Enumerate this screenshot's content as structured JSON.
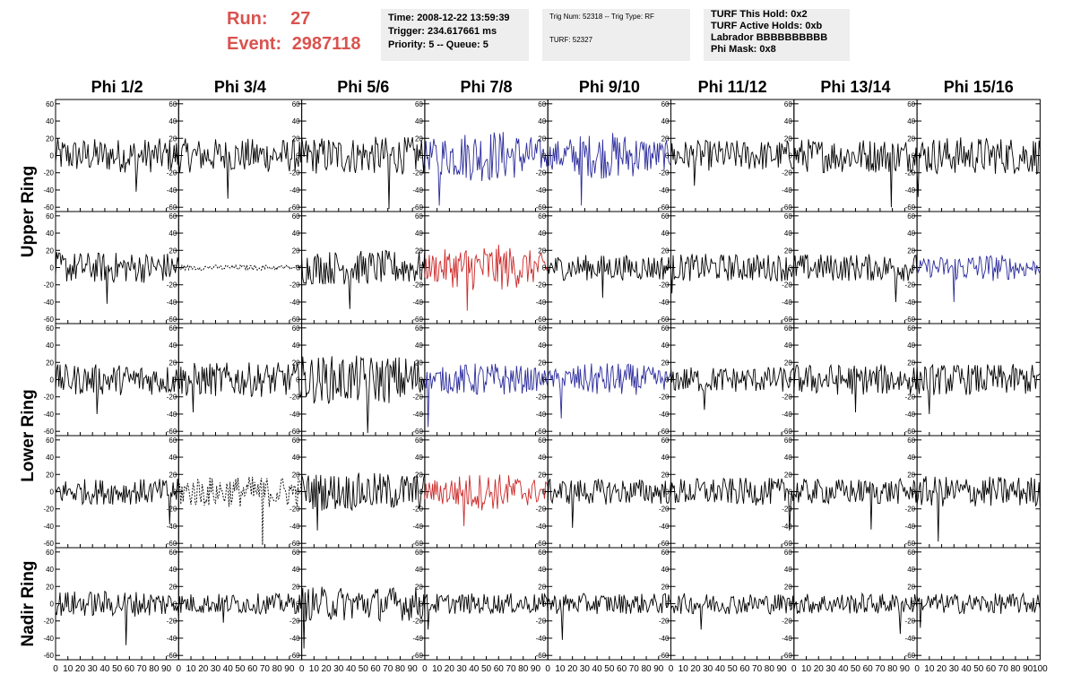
{
  "header": {
    "run_label": "Run:",
    "run_value": "27",
    "event_label": "Event:",
    "event_value": "2987118",
    "time": "Time: 2008-12-22 13:59:39",
    "trigger": "Trigger: 234.617661 ms",
    "priority": "Priority: 5 -- Queue: 5",
    "trig_num": "Trig Num: 52318 -- Trig Type: RF",
    "turf": "TURF: 52327",
    "turf_hold": "TURF This Hold: 0x2",
    "turf_active": "TURF Active Holds: 0xb",
    "labrador": "Labrador BBBBBBBBBB",
    "phi_mask": "Phi Mask: 0x8"
  },
  "colors": {
    "header_red": "#d9534f",
    "trace_black": "#000000",
    "trace_blue": "#2b2b9c",
    "trace_red": "#cc2a2a"
  },
  "chart_data": {
    "type": "line",
    "columns": [
      "Phi 1/2",
      "Phi 3/4",
      "Phi 5/6",
      "Phi 7/8",
      "Phi 9/10",
      "Phi 11/12",
      "Phi 13/14",
      "Phi 15/16"
    ],
    "row_labels": [
      "Upper Ring",
      "Lower Ring",
      "Nadir Ring"
    ],
    "xlim": [
      0,
      100
    ],
    "ylim": [
      -65,
      65
    ],
    "x_ticks": [
      "0",
      "10",
      "20",
      "30",
      "40",
      "50",
      "60",
      "70",
      "80",
      "90",
      "100"
    ],
    "y_ticks": [
      "60",
      "40",
      "20",
      "0",
      "-20",
      "-40",
      "-60"
    ],
    "nadir_y_ticks": [
      "60",
      "40",
      "20",
      "0",
      "-20",
      "-40",
      "-60"
    ],
    "grid": false,
    "panel_styles": [
      [
        "black",
        "black",
        "black",
        "blue",
        "blue",
        "black",
        "black",
        "black"
      ],
      [
        "black",
        "dashed",
        "black",
        "red",
        "black",
        "black",
        "black",
        "blue"
      ],
      [
        "black",
        "black",
        "black",
        "blue",
        "blue",
        "black",
        "black",
        "black"
      ],
      [
        "black",
        "dashed",
        "black",
        "red",
        "black",
        "black",
        "black",
        "black"
      ],
      [
        "black",
        "black",
        "black",
        "black",
        "black",
        "black",
        "black",
        "black"
      ]
    ],
    "panel_amplitudes": [
      [
        20,
        20,
        22,
        28,
        25,
        18,
        20,
        22
      ],
      [
        18,
        3,
        20,
        25,
        15,
        16,
        16,
        15
      ],
      [
        18,
        20,
        28,
        18,
        18,
        15,
        18,
        18
      ],
      [
        15,
        18,
        22,
        20,
        15,
        16,
        15,
        18
      ],
      [
        15,
        12,
        20,
        12,
        12,
        12,
        12,
        12
      ]
    ],
    "panel_spike_values": [
      [
        -42,
        -50,
        -62,
        -58,
        -58,
        -35,
        -60,
        -48
      ],
      [
        -42,
        8,
        -48,
        -50,
        -35,
        -30,
        -40,
        -40
      ],
      [
        -40,
        -38,
        -62,
        -55,
        -45,
        -35,
        -38,
        -40
      ],
      [
        -38,
        -62,
        -45,
        -40,
        -42,
        -45,
        -44,
        -58
      ],
      [
        -48,
        -22,
        -52,
        -30,
        -42,
        -30,
        -35,
        -28
      ]
    ]
  }
}
